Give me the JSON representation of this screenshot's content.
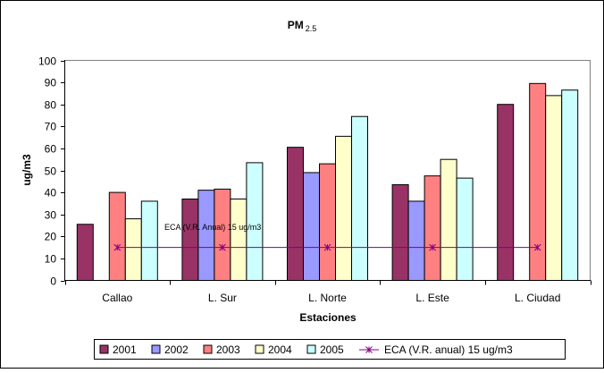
{
  "chart_data": {
    "type": "bar",
    "title_main": "PM",
    "title_sub": "2.5",
    "xlabel": "Estaciones",
    "ylabel": "ug/m3",
    "ylim": [
      0,
      100
    ],
    "yticks": [
      0,
      10,
      20,
      30,
      40,
      50,
      60,
      70,
      80,
      90,
      100
    ],
    "grid": false,
    "legend_position": "bottom",
    "categories": [
      "Callao",
      "L. Sur",
      "L. Norte",
      "L. Este",
      "L. Ciudad"
    ],
    "series": [
      {
        "name": "2001",
        "color": "#993366",
        "values": [
          25.5,
          37,
          60.5,
          43.5,
          80
        ]
      },
      {
        "name": "2002",
        "color": "#9999FF",
        "values": [
          null,
          41,
          49,
          36,
          null
        ]
      },
      {
        "name": "2003",
        "color": "#FF8080",
        "values": [
          40,
          41.5,
          53,
          47.5,
          89.5
        ]
      },
      {
        "name": "2004",
        "color": "#FFFFCC",
        "values": [
          28,
          37,
          65.5,
          55,
          84
        ]
      },
      {
        "name": "2005",
        "color": "#CCFFFF",
        "values": [
          36,
          53.5,
          74.5,
          46.5,
          86.5
        ]
      }
    ],
    "reference_line": {
      "name": "ECA (V.R. anual) 15 ug/m3",
      "value": 15,
      "color": "#800080"
    },
    "annotation": "ECA (V.R. Anual) 15 ug/m3"
  }
}
